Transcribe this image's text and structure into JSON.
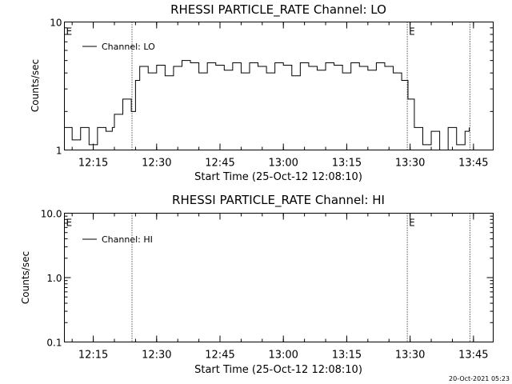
{
  "footer": {
    "timestamp": "20-Oct-2021 05:23"
  },
  "chart_data": [
    {
      "type": "line",
      "title": "RHESSI PARTICLE_RATE Channel: LO",
      "xlabel": "Start Time (25-Oct-12 12:08:10)",
      "ylabel": "Counts/sec",
      "yscale": "log",
      "ylim": [
        1,
        10
      ],
      "xlim": [
        "12:08:10",
        "13:49:40"
      ],
      "x_ticks": [
        "12:15",
        "12:30",
        "12:45",
        "13:00",
        "13:15",
        "13:30",
        "13:45"
      ],
      "y_ticks": [
        "1",
        "10"
      ],
      "legend": {
        "position": "top-left",
        "entries": [
          "Channel: LO"
        ]
      },
      "flags": [
        {
          "label": "E",
          "time": "12:08:10"
        },
        {
          "label": "E",
          "time": "13:29:20"
        }
      ],
      "vlines": [
        "12:24:10",
        "13:29:20",
        "13:44:10"
      ],
      "series": [
        {
          "name": "Channel: LO",
          "x": [
            "12:08:10",
            "12:10:00",
            "12:12:00",
            "12:14:00",
            "12:16:00",
            "12:18:00",
            "12:19:30",
            "12:20:00",
            "12:22:00",
            "12:24:00",
            "12:25:00",
            "12:26:00",
            "12:28:00",
            "12:30:00",
            "12:32:00",
            "12:34:00",
            "12:36:00",
            "12:38:00",
            "12:40:00",
            "12:42:00",
            "12:44:00",
            "12:46:00",
            "12:48:00",
            "12:50:00",
            "12:52:00",
            "12:54:00",
            "12:56:00",
            "12:58:00",
            "13:00:00",
            "13:02:00",
            "13:04:00",
            "13:06:00",
            "13:08:00",
            "13:10:00",
            "13:12:00",
            "13:14:00",
            "13:16:00",
            "13:18:00",
            "13:20:00",
            "13:22:00",
            "13:24:00",
            "13:26:00",
            "13:28:00",
            "13:29:30",
            "13:31:00",
            "13:33:00",
            "13:35:00",
            "13:37:00",
            "13:39:00",
            "13:41:00",
            "13:43:00",
            "13:44:00"
          ],
          "y": [
            1.5,
            1.2,
            1.5,
            1.1,
            1.5,
            1.4,
            1.5,
            1.9,
            2.5,
            2.0,
            3.5,
            4.5,
            4.0,
            4.6,
            3.8,
            4.5,
            5.0,
            4.8,
            4.0,
            4.8,
            4.6,
            4.2,
            4.8,
            4.0,
            4.8,
            4.5,
            4.0,
            4.8,
            4.6,
            3.8,
            4.8,
            4.5,
            4.2,
            4.8,
            4.6,
            4.0,
            4.8,
            4.5,
            4.2,
            4.8,
            4.5,
            4.0,
            3.5,
            2.5,
            1.5,
            1.1,
            1.4,
            1.0,
            1.5,
            1.1,
            1.4,
            1.5
          ]
        }
      ]
    },
    {
      "type": "line",
      "title": "RHESSI PARTICLE_RATE Channel: HI",
      "xlabel": "Start Time (25-Oct-12 12:08:10)",
      "ylabel": "Counts/sec",
      "yscale": "log",
      "ylim": [
        0.1,
        10
      ],
      "xlim": [
        "12:08:10",
        "13:49:40"
      ],
      "x_ticks": [
        "12:15",
        "12:30",
        "12:45",
        "13:00",
        "13:15",
        "13:30",
        "13:45"
      ],
      "y_ticks": [
        "10.0",
        "1.0",
        "0.1"
      ],
      "legend": {
        "position": "top-left",
        "entries": [
          "Channel: HI"
        ]
      },
      "flags": [
        {
          "label": "E",
          "time": "12:08:10"
        },
        {
          "label": "E",
          "time": "13:29:20"
        }
      ],
      "vlines": [
        "12:24:10",
        "13:29:20",
        "13:44:10"
      ],
      "series": [
        {
          "name": "Channel: HI",
          "x": [],
          "y": []
        }
      ]
    }
  ]
}
